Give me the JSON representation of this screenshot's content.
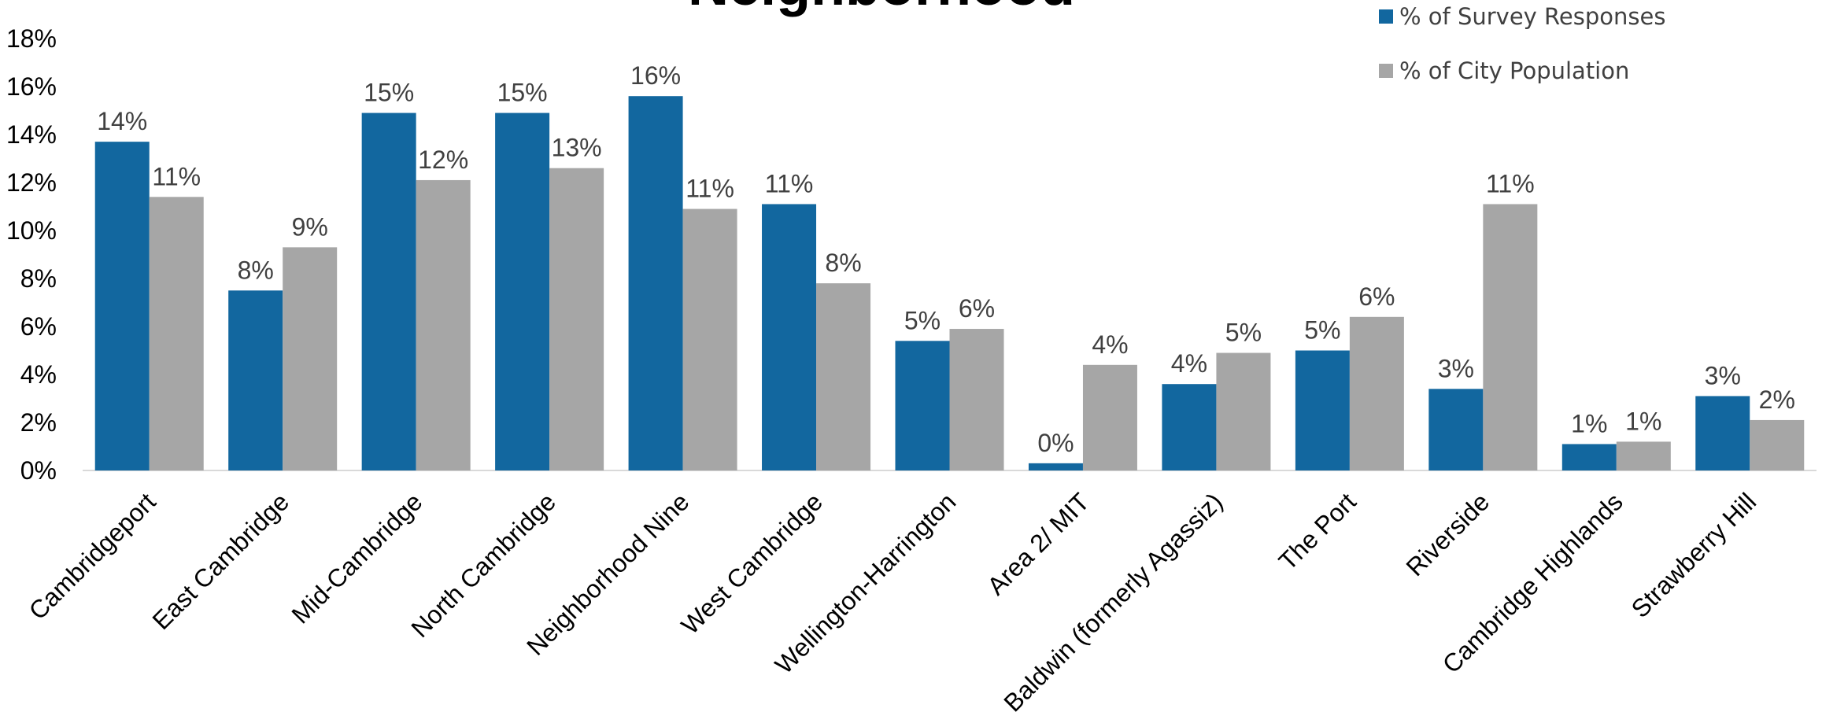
{
  "chart_data": {
    "type": "bar",
    "title": "Neighborhood",
    "xlabel": "",
    "ylabel": "",
    "ylim": [
      0,
      18
    ],
    "y_ticks": [
      "0%",
      "2%",
      "4%",
      "6%",
      "8%",
      "10%",
      "12%",
      "14%",
      "16%",
      "18%"
    ],
    "grid": false,
    "legend_position": "top-right",
    "categories": [
      "Cambridgeport",
      "East Cambridge",
      "Mid-Cambridge",
      "North Cambridge",
      "Neighborhood Nine",
      "West Cambridge",
      "Wellington-Harrington",
      "Area 2/ MIT",
      "Baldwin (formerly Agassiz)",
      "The Port",
      "Riverside",
      "Cambridge Highlands",
      "Strawberry Hill"
    ],
    "series": [
      {
        "name": "% of Survey Responses",
        "color": "#12679f",
        "values": [
          13.7,
          7.5,
          14.9,
          14.9,
          15.6,
          11.1,
          5.4,
          0.3,
          3.6,
          5.0,
          3.4,
          1.1,
          3.1
        ],
        "labels": [
          "14%",
          "8%",
          "15%",
          "15%",
          "16%",
          "11%",
          "5%",
          "0%",
          "4%",
          "5%",
          "3%",
          "1%",
          "3%"
        ]
      },
      {
        "name": "% of City Population",
        "color": "#a6a6a6",
        "values": [
          11.4,
          9.3,
          12.1,
          12.6,
          10.9,
          7.8,
          5.9,
          4.4,
          4.9,
          6.4,
          11.1,
          1.2,
          2.1
        ],
        "labels": [
          "11%",
          "9%",
          "12%",
          "13%",
          "11%",
          "8%",
          "6%",
          "4%",
          "5%",
          "6%",
          "11%",
          "1%",
          "2%"
        ]
      }
    ]
  }
}
